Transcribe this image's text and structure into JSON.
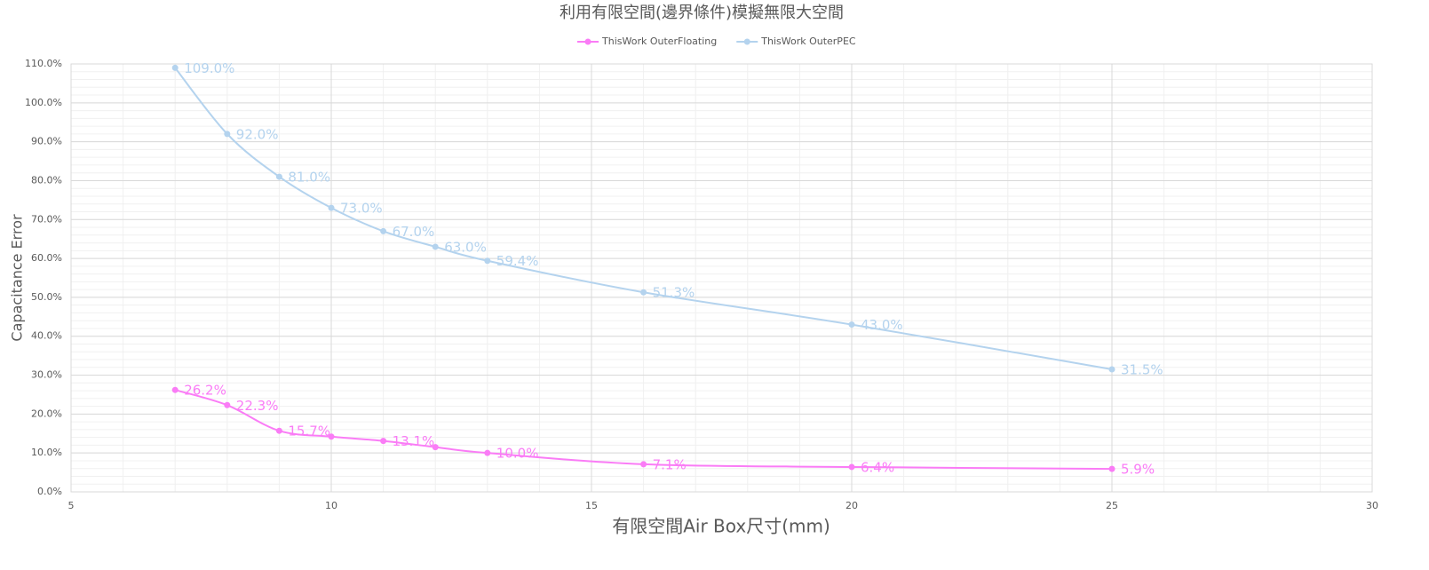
{
  "chart_data": {
    "type": "scatter",
    "title": "利用有限空間(邊界條件)模擬無限大空間",
    "x_label": "有限空間Air Box尺寸(mm)",
    "y_label": "Capacitance Error",
    "xlim": [
      5,
      30
    ],
    "xticks": [
      5,
      10,
      15,
      20,
      25,
      30
    ],
    "ylim": [
      0,
      110
    ],
    "yticks": [
      {
        "value": 0,
        "label": "0.0%"
      },
      {
        "value": 10,
        "label": "10.0%"
      },
      {
        "value": 20,
        "label": "20.0%"
      },
      {
        "value": 30,
        "label": "30.0%"
      },
      {
        "value": 40,
        "label": "40.0%"
      },
      {
        "value": 50,
        "label": "50.0%"
      },
      {
        "value": 60,
        "label": "60.0%"
      },
      {
        "value": 70,
        "label": "70.0%"
      },
      {
        "value": 80,
        "label": "80.0%"
      },
      {
        "value": 90,
        "label": "90.0%"
      },
      {
        "value": 100,
        "label": "100.0%"
      },
      {
        "value": 110,
        "label": "110.0%"
      }
    ],
    "grid": true,
    "legend": "top",
    "smooth": true,
    "series": [
      {
        "name": "ThisWork OuterFloating",
        "color": "#fa7cf6",
        "x": [
          7,
          8,
          9,
          10,
          11,
          12,
          13,
          16,
          20,
          25
        ],
        "values": [
          26.2,
          22.3,
          15.7,
          14.2,
          13.1,
          11.5,
          10.0,
          7.1,
          6.4,
          5.9
        ],
        "value_labels": [
          "26.2%",
          "22.3%",
          "15.7%",
          null,
          "13.1%",
          null,
          "10.0%",
          "7.1%",
          "6.4%",
          "5.9%"
        ]
      },
      {
        "name": "ThisWork OuterPEC",
        "color": "#b4d3ee",
        "x": [
          7,
          8,
          9,
          10,
          11,
          12,
          13,
          16,
          20,
          25
        ],
        "values": [
          109.0,
          92.0,
          81.0,
          73.0,
          67.0,
          63.0,
          59.4,
          51.3,
          43.0,
          31.5
        ],
        "value_labels": [
          "109.0%",
          "92.0%",
          "81.0%",
          "73.0%",
          "67.0%",
          "63.0%",
          "59.4%",
          "51.3%",
          "43.0%",
          "31.5%"
        ]
      }
    ]
  }
}
